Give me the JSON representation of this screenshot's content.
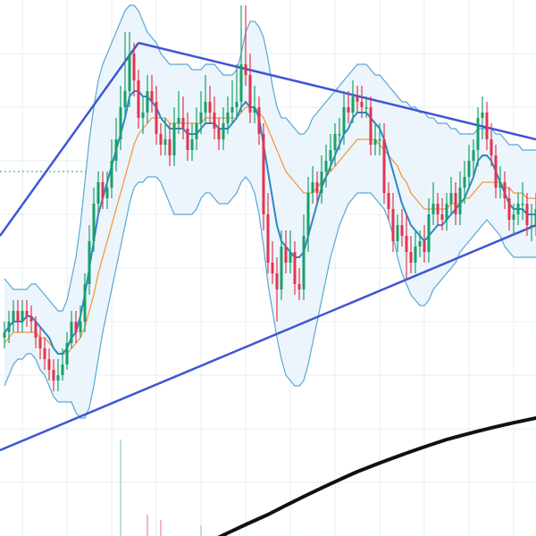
{
  "colors": {
    "background": "#ffffff",
    "grid": "#e6edf3",
    "band_fill": "#eaf4fb",
    "band_line": "#5aa7d6",
    "middle_band": "#2f86c8",
    "ma_orange": "#f29a3a",
    "trendline": "#3f56d6",
    "long_ma": "#111111",
    "up": "#18a06b",
    "down": "#e3344f",
    "volume_up": "#b9e3d1",
    "volume_down": "#f6b7c2",
    "horizontal_level": "#3b8f7a"
  },
  "chart_data": {
    "type": "candlestick",
    "x": [
      1,
      2,
      3,
      4,
      5,
      6,
      7,
      8,
      9,
      10,
      11,
      12,
      13,
      14,
      15,
      16,
      17,
      18,
      19,
      20,
      21,
      22,
      23,
      24,
      25,
      26,
      27,
      28,
      29,
      30,
      31,
      32,
      33,
      34,
      35,
      36,
      37,
      38,
      39,
      40,
      41,
      42,
      43,
      44,
      45,
      46,
      47,
      48,
      49,
      50,
      51,
      52,
      53,
      54,
      55,
      56,
      57,
      58,
      59,
      60,
      61,
      62,
      63,
      64,
      65,
      66,
      67,
      68,
      69,
      70,
      71,
      72,
      73,
      74,
      75,
      76,
      77,
      78,
      79,
      80,
      81,
      82,
      83,
      84,
      85,
      86,
      87,
      88,
      89,
      90,
      91,
      92,
      93,
      94,
      95,
      96,
      97,
      98,
      99,
      100,
      101,
      102,
      103,
      104,
      105,
      106,
      107,
      108,
      109,
      110,
      111,
      112,
      113,
      114,
      115,
      116,
      117,
      118,
      119,
      120
    ],
    "xlim": [
      0,
      120
    ],
    "ylim": [
      0,
      100
    ],
    "candles": {
      "open": [
        37,
        38,
        40,
        42,
        40,
        42,
        41,
        40,
        37,
        35,
        33,
        31,
        29,
        30,
        32,
        36,
        40,
        38,
        40,
        47,
        55,
        62,
        66,
        63,
        65,
        70,
        74,
        80,
        83,
        90,
        85,
        78,
        79,
        83,
        81,
        75,
        73,
        74,
        71,
        77,
        78,
        76,
        72,
        74,
        77,
        79,
        81,
        79,
        76,
        74,
        77,
        79,
        80,
        81,
        88,
        86,
        79,
        80,
        75,
        60,
        51,
        49,
        46,
        54,
        51,
        53,
        47,
        46,
        56,
        64,
        66,
        64,
        68,
        70,
        72,
        75,
        75,
        80,
        79,
        82,
        81,
        80,
        80,
        73,
        74,
        74,
        64,
        61,
        55,
        58,
        56,
        53,
        51,
        54,
        55,
        53,
        60,
        62,
        60,
        59,
        62,
        64,
        60,
        65,
        67,
        70,
        72,
        78,
        79,
        74,
        71,
        65,
        66,
        63,
        59,
        60,
        62,
        62,
        58,
        58
      ],
      "close": [
        38,
        40,
        42,
        40,
        42,
        41,
        40,
        37,
        35,
        33,
        31,
        29,
        30,
        32,
        36,
        40,
        38,
        40,
        47,
        55,
        62,
        66,
        63,
        65,
        70,
        74,
        80,
        83,
        90,
        85,
        78,
        79,
        83,
        81,
        75,
        73,
        74,
        71,
        77,
        78,
        76,
        72,
        74,
        77,
        79,
        81,
        79,
        76,
        74,
        77,
        79,
        80,
        81,
        88,
        86,
        79,
        80,
        75,
        60,
        51,
        49,
        46,
        54,
        51,
        53,
        47,
        46,
        56,
        64,
        66,
        64,
        68,
        70,
        72,
        75,
        75,
        80,
        79,
        82,
        81,
        80,
        80,
        73,
        74,
        74,
        64,
        61,
        55,
        58,
        56,
        53,
        51,
        54,
        55,
        53,
        60,
        62,
        60,
        59,
        62,
        64,
        60,
        65,
        67,
        70,
        72,
        78,
        79,
        74,
        71,
        65,
        66,
        63,
        59,
        60,
        62,
        62,
        58,
        58,
        61
      ],
      "high": [
        40,
        42,
        44,
        44,
        44,
        44,
        43,
        41,
        39,
        37,
        35,
        33,
        33,
        35,
        38,
        42,
        42,
        43,
        49,
        58,
        65,
        68,
        68,
        68,
        74,
        78,
        84,
        94,
        94,
        92,
        87,
        82,
        86,
        86,
        84,
        77,
        78,
        77,
        80,
        83,
        82,
        79,
        77,
        80,
        83,
        86,
        84,
        82,
        78,
        80,
        82,
        85,
        88,
        99,
        99,
        90,
        84,
        82,
        77,
        64,
        55,
        52,
        57,
        57,
        57,
        55,
        50,
        60,
        67,
        69,
        68,
        71,
        73,
        75,
        77,
        78,
        83,
        83,
        85,
        84,
        84,
        82,
        82,
        77,
        77,
        77,
        66,
        64,
        60,
        61,
        60,
        56,
        57,
        57,
        58,
        63,
        66,
        64,
        63,
        64,
        67,
        66,
        68,
        70,
        73,
        74,
        80,
        82,
        81,
        77,
        73,
        69,
        68,
        65,
        62,
        64,
        66,
        64,
        62,
        64
      ],
      "low": [
        35,
        36,
        38,
        38,
        38,
        39,
        38,
        35,
        33,
        31,
        29,
        27,
        27,
        29,
        31,
        35,
        36,
        37,
        38,
        45,
        53,
        60,
        61,
        61,
        63,
        68,
        72,
        78,
        80,
        82,
        76,
        75,
        77,
        79,
        73,
        71,
        71,
        69,
        69,
        75,
        74,
        70,
        70,
        72,
        75,
        77,
        77,
        74,
        72,
        72,
        75,
        77,
        78,
        79,
        84,
        77,
        77,
        73,
        57,
        49,
        47,
        40,
        44,
        49,
        49,
        45,
        44,
        44,
        53,
        62,
        62,
        62,
        65,
        68,
        69,
        72,
        73,
        77,
        77,
        79,
        78,
        78,
        71,
        71,
        71,
        62,
        59,
        53,
        53,
        54,
        48,
        49,
        49,
        52,
        51,
        51,
        58,
        58,
        57,
        57,
        60,
        58,
        58,
        62,
        65,
        67,
        69,
        74,
        72,
        69,
        63,
        63,
        61,
        57,
        56,
        58,
        59,
        56,
        55,
        56
      ]
    },
    "overlays": {
      "bb_upper": [
        48,
        47,
        46,
        46,
        46,
        46,
        47,
        47,
        46,
        45,
        44,
        43,
        42,
        42,
        44,
        48,
        52,
        58,
        66,
        74,
        80,
        85,
        88,
        90,
        92,
        94,
        96,
        98,
        99,
        99,
        98,
        96,
        94,
        93,
        92,
        90,
        89,
        88,
        88,
        88,
        88,
        88,
        87,
        87,
        87,
        88,
        88,
        88,
        87,
        86,
        86,
        86,
        87,
        90,
        94,
        96,
        96,
        95,
        93,
        89,
        84,
        80,
        78,
        78,
        77,
        76,
        75,
        75,
        76,
        78,
        79,
        80,
        81,
        82,
        83,
        84,
        85,
        86,
        87,
        88,
        88,
        88,
        87,
        86,
        86,
        85,
        84,
        83,
        82,
        81,
        81,
        80,
        80,
        79,
        79,
        78,
        78,
        77,
        77,
        77,
        76,
        76,
        75,
        75,
        75,
        75,
        76,
        76,
        76,
        76,
        75,
        75,
        74,
        73,
        73,
        73,
        72,
        72,
        72,
        72
      ],
      "bb_middle": [
        38,
        39,
        40,
        40,
        40,
        41,
        41,
        40,
        39,
        38,
        37,
        35,
        34,
        34,
        35,
        37,
        38,
        41,
        45,
        50,
        55,
        60,
        63,
        66,
        69,
        72,
        75,
        78,
        82,
        83,
        83,
        82,
        82,
        81,
        80,
        78,
        77,
        76,
        76,
        76,
        76,
        75,
        75,
        75,
        76,
        77,
        77,
        77,
        76,
        76,
        76,
        77,
        78,
        80,
        81,
        80,
        80,
        78,
        73,
        68,
        63,
        58,
        55,
        54,
        53,
        52,
        52,
        53,
        56,
        59,
        62,
        65,
        67,
        69,
        71,
        73,
        75,
        76,
        78,
        79,
        79,
        79,
        78,
        77,
        76,
        74,
        71,
        68,
        65,
        62,
        60,
        58,
        57,
        56,
        55,
        56,
        57,
        58,
        58,
        59,
        60,
        61,
        62,
        63,
        65,
        67,
        70,
        71,
        71,
        70,
        68,
        66,
        64,
        62,
        61,
        61,
        61,
        60,
        60,
        60
      ],
      "ma_short": [
        36,
        37,
        38,
        38,
        38,
        38,
        38,
        38,
        37,
        37,
        36,
        35,
        34,
        34,
        34,
        35,
        36,
        37,
        39,
        42,
        45,
        49,
        52,
        55,
        58,
        61,
        64,
        67,
        70,
        73,
        75,
        76,
        77,
        78,
        78,
        78,
        78,
        77,
        77,
        77,
        77,
        77,
        77,
        77,
        77,
        78,
        78,
        78,
        78,
        78,
        78,
        78,
        78,
        79,
        80,
        80,
        80,
        79,
        78,
        76,
        74,
        72,
        70,
        68,
        67,
        66,
        65,
        64,
        64,
        64,
        65,
        66,
        67,
        68,
        69,
        70,
        71,
        72,
        73,
        74,
        74,
        74,
        74,
        74,
        73,
        72,
        71,
        70,
        69,
        67,
        66,
        64,
        63,
        62,
        61,
        61,
        61,
        61,
        61,
        61,
        62,
        62,
        62,
        63,
        63,
        64,
        65,
        66,
        66,
        66,
        66,
        66,
        65,
        65,
        64,
        64,
        64,
        63,
        63,
        63
      ],
      "bb_lower": [
        28,
        30,
        32,
        33,
        33,
        34,
        34,
        33,
        31,
        30,
        28,
        26,
        25,
        25,
        25,
        25,
        23,
        22,
        22,
        24,
        28,
        33,
        38,
        42,
        46,
        50,
        54,
        58,
        62,
        65,
        66,
        66,
        67,
        67,
        67,
        66,
        64,
        62,
        60,
        60,
        60,
        60,
        60,
        61,
        63,
        64,
        64,
        63,
        62,
        62,
        62,
        63,
        64,
        66,
        67,
        66,
        64,
        60,
        54,
        47,
        42,
        37,
        33,
        30,
        29,
        28,
        28,
        29,
        32,
        36,
        40,
        44,
        48,
        52,
        55,
        58,
        60,
        62,
        63,
        64,
        64,
        64,
        64,
        63,
        62,
        61,
        59,
        56,
        52,
        49,
        47,
        45,
        44,
        43,
        43,
        44,
        46,
        47,
        48,
        49,
        50,
        51,
        53,
        54,
        55,
        56,
        57,
        58,
        59,
        58,
        57,
        56,
        54,
        53,
        52,
        52,
        52,
        52,
        52,
        52
      ]
    },
    "trendlines": [
      {
        "x": [
          0,
          31
        ],
        "y": [
          56,
          92
        ]
      },
      {
        "x": [
          31,
          120
        ],
        "y": [
          92,
          74
        ]
      },
      {
        "x": [
          0,
          120
        ],
        "y": [
          16,
          58
        ]
      }
    ],
    "long_ma": {
      "x": [
        40,
        60,
        80,
        100,
        120
      ],
      "y": [
        -4,
        4,
        12,
        18,
        22
      ]
    },
    "horizontal_level": 68
  }
}
